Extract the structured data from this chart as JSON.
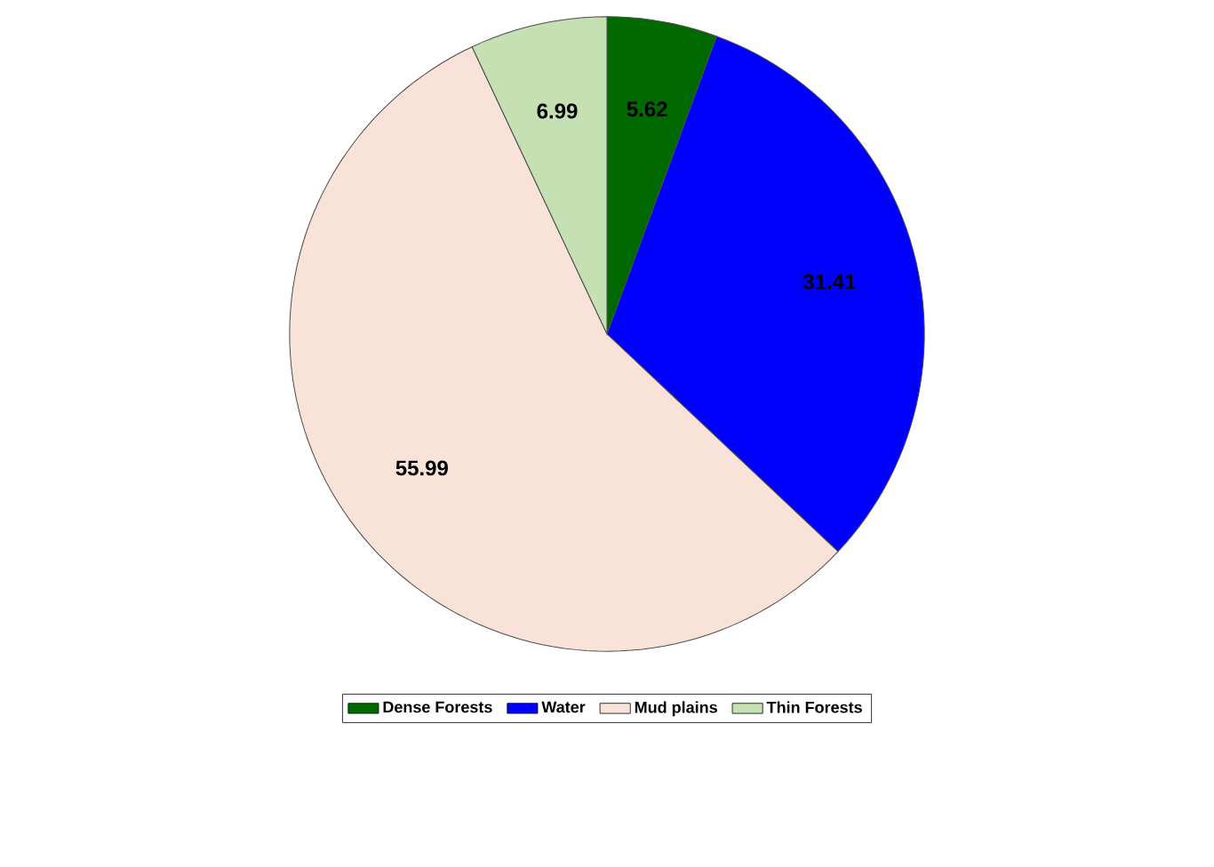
{
  "chart_data": {
    "type": "pie",
    "categories": [
      "Dense Forests",
      "Water",
      "Mud plains",
      "Thin Forests"
    ],
    "values": [
      5.62,
      31.41,
      55.99,
      6.99
    ],
    "colors": [
      "#006a00",
      "#0000ff",
      "#f9e3d8",
      "#c5e0b3"
    ],
    "data_labels": true,
    "legend": "bottom"
  }
}
